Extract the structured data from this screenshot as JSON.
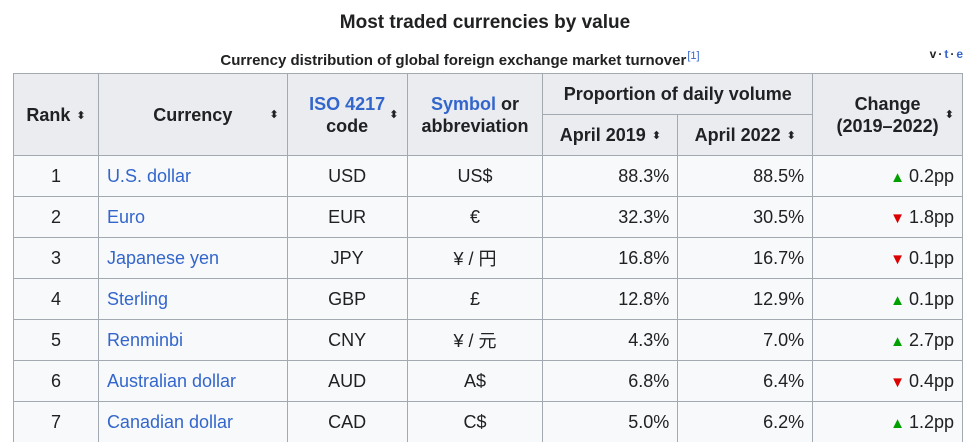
{
  "title": "Most traded currencies by value",
  "subtitle": "Currency distribution of global foreign exchange market turnover",
  "subtitle_ref": "[1]",
  "vte": {
    "v": "v",
    "t": "t",
    "e": "e",
    "sep": "·"
  },
  "headers": {
    "rank": "Rank",
    "currency": "Currency",
    "iso_link": "ISO 4217",
    "iso_suffix": "code",
    "symbol_link": "Symbol",
    "symbol_suffix": "or abbreviation",
    "proportion": "Proportion of daily volume",
    "april2019": "April 2019",
    "april2022": "April 2022",
    "change": "Change",
    "change_period": "(2019–2022)"
  },
  "sort_icon": "⬍",
  "colors": {
    "link": "#3366cc",
    "up": "#00a000",
    "down": "#dd0000"
  },
  "rows": [
    {
      "rank": "1",
      "currency": "U.S. dollar",
      "iso": "USD",
      "symbol": "US$",
      "p2019": "88.3%",
      "p2022": "88.5%",
      "dir": "up",
      "arrow": "▲",
      "change": "0.2pp"
    },
    {
      "rank": "2",
      "currency": "Euro",
      "iso": "EUR",
      "symbol": "€",
      "p2019": "32.3%",
      "p2022": "30.5%",
      "dir": "down",
      "arrow": "▼",
      "change": "1.8pp"
    },
    {
      "rank": "3",
      "currency": "Japanese yen",
      "iso": "JPY",
      "symbol": "¥ / 円",
      "p2019": "16.8%",
      "p2022": "16.7%",
      "dir": "down",
      "arrow": "▼",
      "change": "0.1pp"
    },
    {
      "rank": "4",
      "currency": "Sterling",
      "iso": "GBP",
      "symbol": "£",
      "p2019": "12.8%",
      "p2022": "12.9%",
      "dir": "up",
      "arrow": "▲",
      "change": "0.1pp"
    },
    {
      "rank": "5",
      "currency": "Renminbi",
      "iso": "CNY",
      "symbol": "¥ / 元",
      "p2019": "4.3%",
      "p2022": "7.0%",
      "dir": "up",
      "arrow": "▲",
      "change": "2.7pp"
    },
    {
      "rank": "6",
      "currency": "Australian dollar",
      "iso": "AUD",
      "symbol": "A$",
      "p2019": "6.8%",
      "p2022": "6.4%",
      "dir": "down",
      "arrow": "▼",
      "change": "0.4pp"
    },
    {
      "rank": "7",
      "currency": "Canadian dollar",
      "iso": "CAD",
      "symbol": "C$",
      "p2019": "5.0%",
      "p2022": "6.2%",
      "dir": "up",
      "arrow": "▲",
      "change": "1.2pp"
    }
  ]
}
